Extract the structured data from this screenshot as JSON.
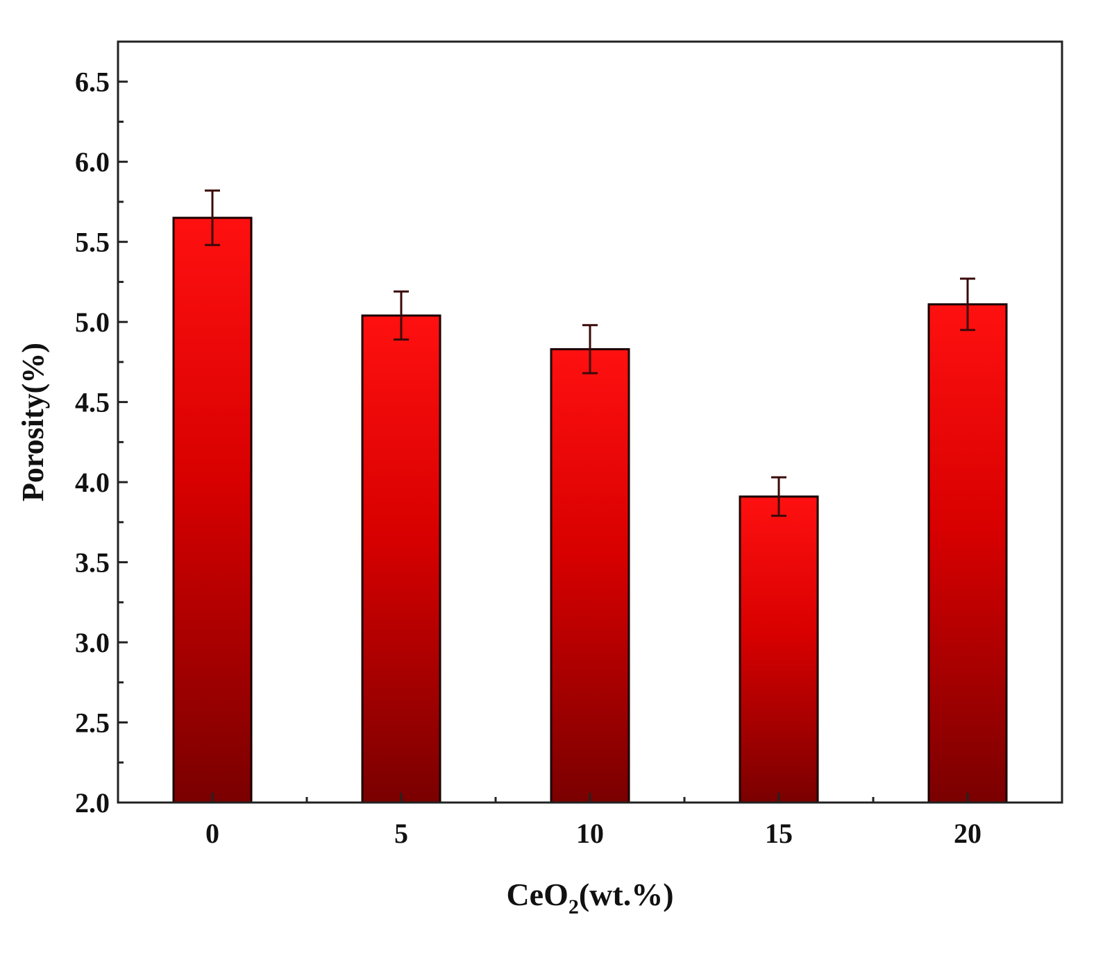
{
  "chart_data": {
    "type": "bar",
    "categories": [
      "0",
      "5",
      "10",
      "15",
      "20"
    ],
    "values": [
      5.65,
      5.04,
      4.83,
      3.91,
      5.11
    ],
    "errors": [
      0.17,
      0.15,
      0.15,
      0.12,
      0.16
    ],
    "xlabel": {
      "main": "CeO",
      "sub": "2",
      "tail": "(wt.%)"
    },
    "ylabel": "Porosity(%)",
    "ylim": [
      2.0,
      6.75
    ],
    "yticks": [
      "2.0",
      "2.5",
      "3.0",
      "3.5",
      "4.0",
      "4.5",
      "5.0",
      "5.5",
      "6.0",
      "6.5"
    ],
    "colors": {
      "bar_top": "#ff1010",
      "bar_bottom": "#7a0000",
      "bar_stroke": "#1a0000",
      "axis": "#222222"
    },
    "grid": false
  }
}
